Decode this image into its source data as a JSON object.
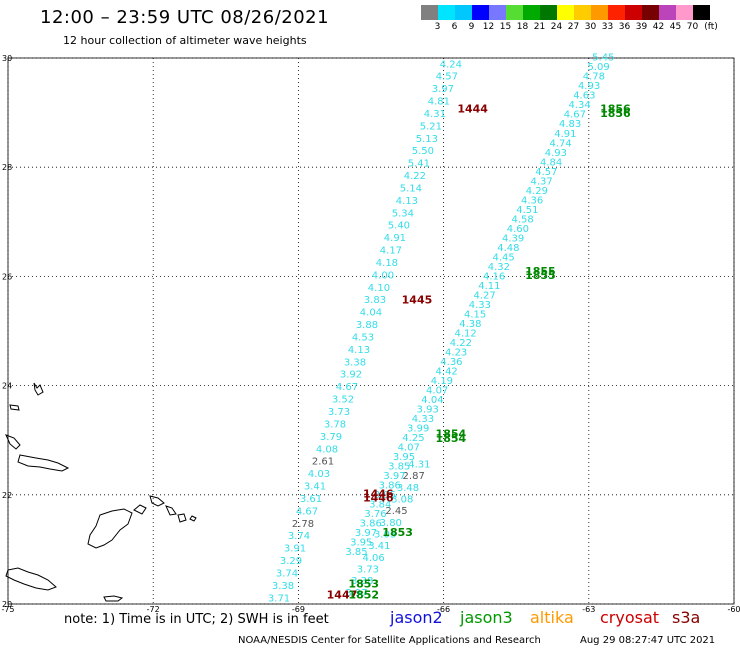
{
  "header": {
    "title": "12:00 – 23:59 UTC 08/26/2021",
    "subtitle": "12 hour collection of altimeter wave heights"
  },
  "colorbar": {
    "unit": "(ft)",
    "labels": [
      "3",
      "6",
      "9",
      "12",
      "15",
      "18",
      "21",
      "24",
      "27",
      "30",
      "33",
      "36",
      "39",
      "42",
      "45",
      "70"
    ],
    "colors": [
      "#808080",
      "#00e5ff",
      "#00c8ff",
      "#0000ff",
      "#7777ff",
      "#55dd33",
      "#00aa00",
      "#007700",
      "#ffff00",
      "#ffcc00",
      "#ff9900",
      "#ff2200",
      "#cc0000",
      "#770000",
      "#bb44bb",
      "#ff99cc",
      "#000000"
    ]
  },
  "map": {
    "lat_ticks": [
      "30",
      "28",
      "26",
      "24",
      "22",
      "20"
    ],
    "lon_ticks": [
      "-75",
      "-72",
      "-69",
      "-66",
      "-63",
      "-60"
    ],
    "colors": {
      "cyan": "#33dde8",
      "gray": "#555555",
      "green": "#008800",
      "darkred": "#880000"
    },
    "track_a": [
      "4.24",
      "4.57",
      "3.97",
      "4.81",
      "4.31",
      "5.21",
      "5.13",
      "5.50",
      "5.41",
      "4.22",
      "5.14",
      "4.13",
      "5.34",
      "5.40",
      "4.91",
      "4.17",
      "4.18",
      "4.00",
      "4.10",
      "3.83",
      "4.04",
      "3.88",
      "4.53",
      "4.13",
      "3.38",
      "3.92",
      "4.67",
      "3.52",
      "3.73",
      "3.78",
      "3.79",
      "4.08",
      "2.61",
      "4.03",
      "3.41",
      "3.61",
      "4.67",
      "2.78",
      "3.74",
      "3.91",
      "3.29",
      "3.74",
      "3.38",
      "3.71"
    ],
    "track_a_gray_indices": [
      32,
      37
    ],
    "track_b": [
      "4.31",
      "2.87",
      "3.48",
      "3.08",
      "2.45",
      "3.80",
      "3.03",
      "3.41",
      "4.06",
      "3.73",
      "3.38",
      "3.97"
    ],
    "track_b_gray_indices": [
      1,
      4
    ],
    "track_c": [
      "5.45",
      "5.09",
      "4.78",
      "4.93",
      "4.63",
      "4.34",
      "4.67",
      "4.83",
      "4.91",
      "4.74",
      "4.93",
      "4.84",
      "4.57",
      "4.37",
      "4.29",
      "4.36",
      "4.51",
      "4.58",
      "4.60",
      "4.39",
      "4.48",
      "4.45",
      "4.32",
      "4.16",
      "4.11",
      "4.27",
      "4.33",
      "4.15",
      "4.38",
      "4.12",
      "4.22",
      "4.23",
      "4.36",
      "4.42",
      "4.19",
      "4.07",
      "4.04",
      "3.93",
      "4.33",
      "3.99",
      "4.25",
      "4.07",
      "3.95",
      "3.85",
      "3.97",
      "3.86",
      "3.95",
      "3.84",
      "3.76",
      "3.86",
      "3.97",
      "3.95",
      "3.85"
    ],
    "time_labels": [
      {
        "text": "1444",
        "color": "darkred",
        "lon": -65.4,
        "lat": 29.0
      },
      {
        "text": "1856",
        "color": "green",
        "lon": -62.45,
        "lat": 29.0
      },
      {
        "text": "1856",
        "color": "green",
        "lon": -62.45,
        "lat": 28.92
      },
      {
        "text": "1855",
        "color": "green",
        "lon": -64.0,
        "lat": 26.03
      },
      {
        "text": "1855",
        "color": "green",
        "lon": -64.0,
        "lat": 25.95
      },
      {
        "text": "1445",
        "color": "darkred",
        "lon": -66.55,
        "lat": 25.5
      },
      {
        "text": "1854",
        "color": "green",
        "lon": -65.85,
        "lat": 23.05
      },
      {
        "text": "1854",
        "color": "green",
        "lon": -65.85,
        "lat": 22.97
      },
      {
        "text": "1446",
        "color": "darkred",
        "lon": -67.35,
        "lat": 21.95
      },
      {
        "text": "1446",
        "color": "darkred",
        "lon": -67.35,
        "lat": 21.88
      },
      {
        "text": "1853",
        "color": "green",
        "lon": -66.95,
        "lat": 21.25
      },
      {
        "text": "1853",
        "color": "green",
        "lon": -67.65,
        "lat": 20.3
      },
      {
        "text": "1447",
        "color": "darkred",
        "lon": -68.1,
        "lat": 20.1
      },
      {
        "text": "1852",
        "color": "green",
        "lon": -67.65,
        "lat": 20.1
      }
    ]
  },
  "footer": {
    "note": "note:  1)  Time is in UTC;  2)  SWH is in feet",
    "satellites": [
      {
        "name": "jason2",
        "color": "#1111dd"
      },
      {
        "name": "jason3",
        "color": "#009900"
      },
      {
        "name": "altika",
        "color": "#ff9900"
      },
      {
        "name": "cryosat",
        "color": "#cc0000"
      },
      {
        "name": "s3a",
        "color": "#880000"
      }
    ],
    "credit": "NOAA/NESDIS Center for Satellite Applications and Research",
    "date": "Aug 29 08:27:47 UTC 2021"
  }
}
